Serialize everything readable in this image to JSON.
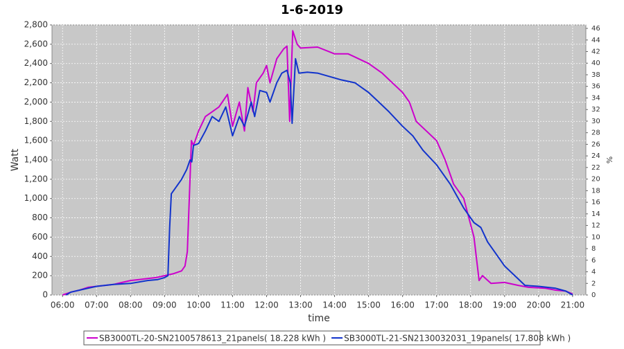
{
  "chart_data": {
    "type": "line",
    "title": "1-6-2019",
    "x_label": "time",
    "y_label": "Watt",
    "y2_label": "%",
    "xlim": [
      5.69,
      21.39
    ],
    "xticks": [
      {
        "value": 6,
        "label": "06:00"
      },
      {
        "value": 7,
        "label": "07:00"
      },
      {
        "value": 8,
        "label": "08:00"
      },
      {
        "value": 9,
        "label": "09:00"
      },
      {
        "value": 10,
        "label": "10:00"
      },
      {
        "value": 11,
        "label": "11:00"
      },
      {
        "value": 12,
        "label": "12:00"
      },
      {
        "value": 13,
        "label": "13:00"
      },
      {
        "value": 14,
        "label": "14:00"
      },
      {
        "value": 15,
        "label": "15:00"
      },
      {
        "value": 16,
        "label": "16:00"
      },
      {
        "value": 17,
        "label": "17:00"
      },
      {
        "value": 18,
        "label": "18:00"
      },
      {
        "value": 19,
        "label": "19:00"
      },
      {
        "value": 20,
        "label": "20:00"
      },
      {
        "value": 21,
        "label": "21:00"
      }
    ],
    "ylim": [
      0,
      2800
    ],
    "yticks": [
      0,
      200,
      400,
      600,
      800,
      {
        "value": 1000,
        "label": "1,000"
      },
      {
        "value": 1200,
        "label": "1,200"
      },
      {
        "value": 1400,
        "label": "1,400"
      },
      {
        "value": 1600,
        "label": "1,600"
      },
      {
        "value": 1800,
        "label": "1,800"
      },
      {
        "value": 2000,
        "label": "2,000"
      },
      {
        "value": 2200,
        "label": "2,200"
      },
      {
        "value": 2400,
        "label": "2,400"
      },
      {
        "value": 2600,
        "label": "2,600"
      },
      {
        "value": 2800,
        "label": "2,800"
      }
    ],
    "y2lim": [
      0,
      46.6
    ],
    "y2ticks": [
      0,
      2,
      4,
      6,
      8,
      10,
      12,
      14,
      16,
      18,
      20,
      22,
      24,
      26,
      28,
      30,
      32,
      34,
      36,
      38,
      40,
      42,
      44,
      46
    ],
    "grid": true,
    "series": [
      {
        "name": "SB3000TL-20-SN2100578613_21panels( 18.228 kWh )",
        "color": "#cc00cc",
        "x": [
          6.0,
          6.25,
          6.5,
          6.75,
          7.0,
          7.25,
          7.5,
          7.75,
          8.0,
          8.25,
          8.5,
          8.75,
          9.0,
          9.25,
          9.5,
          9.6,
          9.67,
          9.79,
          9.85,
          10.0,
          10.2,
          10.4,
          10.6,
          10.85,
          11.0,
          11.2,
          11.35,
          11.45,
          11.6,
          11.7,
          11.9,
          12.0,
          12.1,
          12.3,
          12.5,
          12.6,
          12.68,
          12.77,
          12.9,
          13.0,
          13.5,
          14.0,
          14.4,
          15.0,
          15.4,
          15.7,
          16.0,
          16.2,
          16.4,
          16.7,
          17.0,
          17.25,
          17.5,
          17.8,
          18.1,
          18.25,
          18.35,
          18.6,
          19.0,
          19.4,
          19.7,
          20.2,
          20.5,
          20.8,
          21.0
        ],
        "values": [
          0,
          30,
          50,
          80,
          90,
          100,
          110,
          130,
          150,
          160,
          170,
          180,
          200,
          220,
          250,
          300,
          450,
          1600,
          1550,
          1700,
          1850,
          1900,
          1950,
          2080,
          1750,
          2000,
          1700,
          2150,
          1900,
          2200,
          2300,
          2380,
          2200,
          2450,
          2550,
          2580,
          1800,
          2740,
          2600,
          2560,
          2570,
          2500,
          2500,
          2400,
          2300,
          2200,
          2100,
          2000,
          1800,
          1700,
          1600,
          1400,
          1150,
          1000,
          600,
          150,
          200,
          120,
          130,
          100,
          80,
          70,
          50,
          40,
          10
        ]
      },
      {
        "name": "SB3000TL-21-SN2130032031_19panels( 17.808 kWh )",
        "color": "#1133cc",
        "x": [
          6.1,
          6.25,
          6.5,
          7.0,
          7.5,
          8.0,
          8.5,
          8.8,
          9.0,
          9.1,
          9.15,
          9.2,
          9.3,
          9.5,
          9.65,
          9.75,
          9.8,
          9.85,
          10.0,
          10.2,
          10.4,
          10.6,
          10.8,
          10.9,
          11.0,
          11.2,
          11.35,
          11.55,
          11.65,
          11.8,
          12.0,
          12.1,
          12.3,
          12.45,
          12.6,
          12.7,
          12.75,
          12.85,
          12.95,
          13.2,
          13.5,
          13.8,
          14.2,
          14.6,
          15.0,
          15.3,
          15.6,
          16.0,
          16.3,
          16.6,
          17.0,
          17.4,
          17.8,
          18.1,
          18.3,
          18.5,
          18.7,
          19.0,
          19.3,
          19.6,
          20.0,
          20.5,
          20.8,
          21.0
        ],
        "values": [
          0,
          30,
          50,
          90,
          110,
          120,
          150,
          160,
          180,
          200,
          700,
          1050,
          1100,
          1200,
          1300,
          1400,
          1380,
          1550,
          1570,
          1700,
          1850,
          1800,
          1950,
          1800,
          1650,
          1850,
          1750,
          2000,
          1850,
          2120,
          2100,
          2000,
          2200,
          2300,
          2330,
          2200,
          1780,
          2450,
          2300,
          2310,
          2300,
          2270,
          2230,
          2200,
          2100,
          2000,
          1900,
          1750,
          1650,
          1500,
          1350,
          1150,
          900,
          750,
          700,
          550,
          450,
          300,
          200,
          100,
          90,
          70,
          40,
          0
        ]
      }
    ]
  }
}
